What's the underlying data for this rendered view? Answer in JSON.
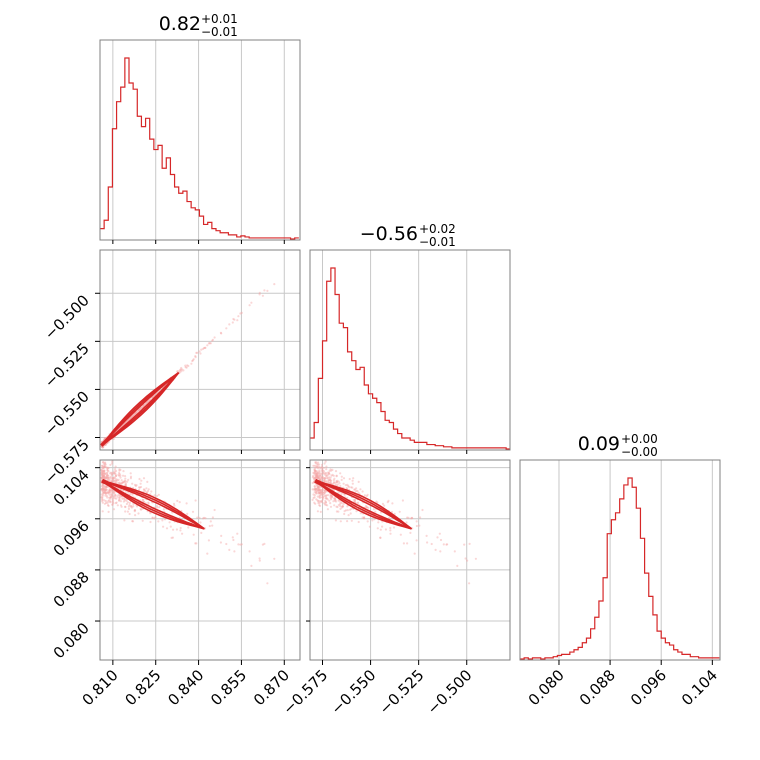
{
  "chart_data": {
    "type": "corner",
    "colors": {
      "main": "#d62728",
      "samples": "#f4a6a6",
      "grid": "#c8c8c8",
      "frame": "#808080"
    },
    "grid": true,
    "parameters": [
      {
        "title_value": "0.82",
        "title_plus": "+0.01",
        "title_minus": "−0.01",
        "range": [
          0.8055,
          0.8755
        ],
        "ticks": [
          0.81,
          0.825,
          0.84,
          0.855,
          0.87
        ],
        "tick_labels": [
          "0.810",
          "0.825",
          "0.840",
          "0.855",
          "0.870"
        ],
        "histogram": {
          "bin_start": 0.8055,
          "bin_width": 0.00145,
          "counts": [
            10,
            18,
            50,
            106,
            132,
            146,
            174,
            150,
            144,
            118,
            108,
            116,
            96,
            86,
            90,
            68,
            78,
            62,
            50,
            44,
            46,
            36,
            30,
            28,
            22,
            14,
            16,
            10,
            8,
            6,
            6,
            4,
            4,
            2,
            3,
            2,
            1,
            1,
            1,
            1,
            1,
            1,
            1,
            1,
            1,
            1,
            0,
            1
          ]
        }
      },
      {
        "title_value": "−0.56",
        "title_plus": "+0.02",
        "title_minus": "−0.01",
        "range": [
          -0.5815,
          -0.4775
        ],
        "ticks": [
          -0.575,
          -0.55,
          -0.525,
          -0.5
        ],
        "tick_labels": [
          "−0.575",
          "−0.550",
          "−0.525",
          "−0.500"
        ],
        "histogram": {
          "bin_start": -0.5815,
          "bin_width": 0.00217,
          "counts": [
            10,
            24,
            64,
            98,
            152,
            164,
            140,
            114,
            110,
            88,
            80,
            72,
            74,
            58,
            50,
            46,
            42,
            34,
            26,
            24,
            18,
            14,
            10,
            10,
            8,
            6,
            6,
            6,
            4,
            4,
            3,
            3,
            2,
            2,
            1,
            1,
            1,
            1,
            1,
            1,
            1,
            1,
            1,
            1,
            1,
            1,
            1,
            0
          ]
        }
      },
      {
        "title_value": "0.09",
        "title_plus": "+0.00",
        "title_minus": "−0.00",
        "range": [
          0.0739,
          0.1052
        ],
        "ticks": [
          0.08,
          0.088,
          0.096,
          0.104
        ],
        "tick_labels": [
          "0.080",
          "0.088",
          "0.096",
          "0.104"
        ],
        "histogram": {
          "bin_start": 0.0739,
          "bin_width": 0.00065,
          "counts": [
            0,
            1,
            0,
            1,
            1,
            0,
            1,
            1,
            2,
            3,
            4,
            4,
            6,
            8,
            10,
            14,
            18,
            26,
            36,
            50,
            70,
            108,
            120,
            126,
            138,
            150,
            156,
            148,
            130,
            104,
            74,
            54,
            38,
            24,
            18,
            14,
            12,
            8,
            6,
            4,
            4,
            2,
            2,
            1,
            1,
            1,
            1,
            1
          ]
        }
      }
    ]
  }
}
